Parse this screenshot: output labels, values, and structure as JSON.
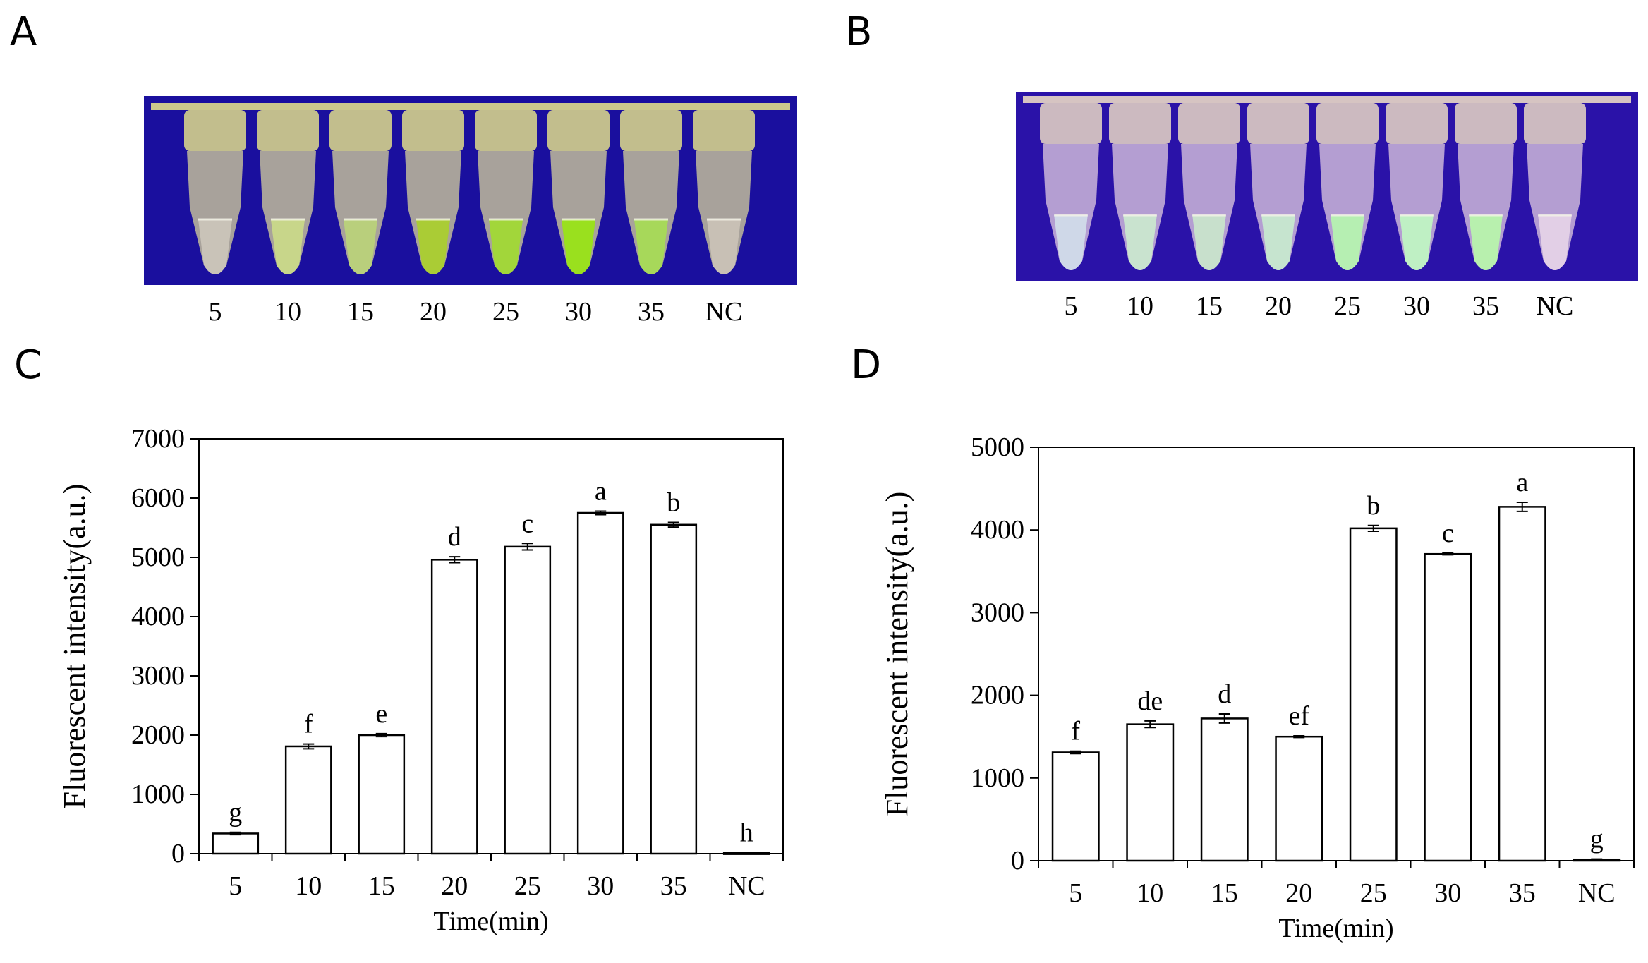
{
  "panels": {
    "A": "A",
    "B": "B",
    "C": "C",
    "D": "D"
  },
  "photos": {
    "A": {
      "background_color": "#1a0f9e",
      "tube_labels": [
        "5",
        "10",
        "15",
        "20",
        "25",
        "30",
        "35",
        "NC"
      ],
      "liquid_colors": [
        "#c9c3b8",
        "#c8d68a",
        "#b9cf7c",
        "#aacc35",
        "#a2d63a",
        "#9ae01e",
        "#a7d85a",
        "#c8c0b5"
      ],
      "body_color": "#d8d49a",
      "cap_color": "#e0dd8a"
    },
    "B": {
      "background_color": "#2a12a8",
      "tube_labels": [
        "5",
        "10",
        "15",
        "20",
        "25",
        "30",
        "35",
        "NC"
      ],
      "liquid_colors": [
        "#cfd8e8",
        "#c9e3cf",
        "#c8e0cc",
        "#c6e4cf",
        "#b6efb2",
        "#bff0c4",
        "#b8f0ae",
        "#e2cfe6"
      ],
      "body_color": "#e3cde0",
      "cap_color": "#e9d8c4"
    }
  },
  "chart_data": [
    {
      "type": "bar",
      "title": "",
      "xlabel": "Time(min)",
      "ylabel": "Fluorescent intensity(a.u.)",
      "categories": [
        "5",
        "10",
        "15",
        "20",
        "25",
        "30",
        "35",
        "NC"
      ],
      "values": [
        340,
        1810,
        2000,
        4960,
        5180,
        5750,
        5550,
        10
      ],
      "errors": [
        20,
        40,
        25,
        50,
        55,
        30,
        40,
        5
      ],
      "letters": [
        "g",
        "f",
        "e",
        "d",
        "c",
        "a",
        "b",
        "h"
      ],
      "ylim": [
        0,
        7000
      ],
      "yticks": [
        "0",
        "1000",
        "2000",
        "3000",
        "4000",
        "5000",
        "6000",
        "7000"
      ],
      "grid": false,
      "bar_fill": "#ffffff",
      "bar_stroke": "#000000"
    },
    {
      "type": "bar",
      "title": "",
      "xlabel": "Time(min)",
      "ylabel": "Fluorescent intensity(a.u.)",
      "categories": [
        "5",
        "10",
        "15",
        "20",
        "25",
        "30",
        "35",
        "NC"
      ],
      "values": [
        1310,
        1650,
        1720,
        1500,
        4020,
        3710,
        4280,
        15
      ],
      "errors": [
        15,
        40,
        55,
        10,
        35,
        10,
        55,
        5
      ],
      "letters": [
        "f",
        "de",
        "d",
        "ef",
        "b",
        "c",
        "a",
        "g"
      ],
      "ylim": [
        0,
        5000
      ],
      "yticks": [
        "0",
        "1000",
        "2000",
        "3000",
        "4000",
        "5000"
      ],
      "grid": false,
      "bar_fill": "#ffffff",
      "bar_stroke": "#000000"
    }
  ]
}
